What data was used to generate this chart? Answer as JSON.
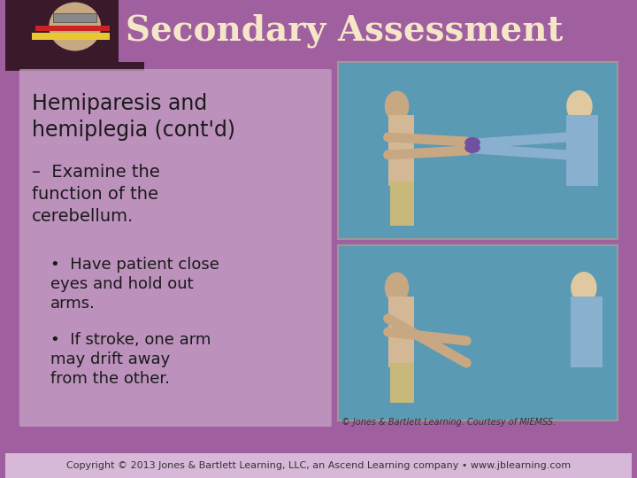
{
  "title": "Secondary Assessment",
  "title_color": "#F5E6C8",
  "title_fontsize": 28,
  "bg_color": "#A060A0",
  "text_panel_color": "#C8A8C8",
  "text_panel_alpha": 0.55,
  "heading": "Hemiparesis and\nhemiplegia (cont'd)",
  "heading_fontsize": 17,
  "heading_color": "#1a1a1a",
  "subheading": "Examine the\nfunction of the\ncerebellum.",
  "subheading_fontsize": 14,
  "subheading_color": "#1a1a1a",
  "bullet1": "Have patient close\neyes and hold out\narms.",
  "bullet2": "If stroke, one arm\nmay drift away\nfrom the other.",
  "bullet_fontsize": 13,
  "bullet_color": "#1a1a1a",
  "credit": "© Jones & Bartlett Learning. Courtesy of MIEMSS.",
  "copyright": "Copyright © 2013 Jones & Bartlett Learning, LLC, an Ascend Learning company • www.jblearning.com",
  "copyright_fontsize": 8,
  "credit_fontsize": 7,
  "bottom_bar_color": "#C8A8C8"
}
